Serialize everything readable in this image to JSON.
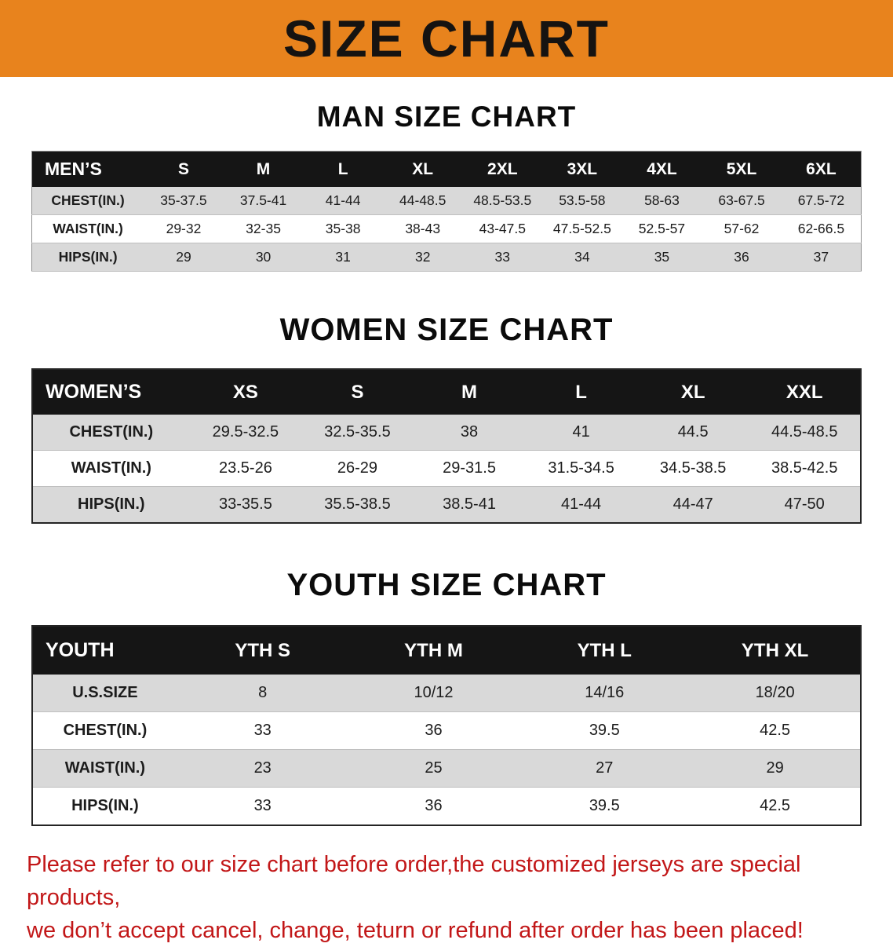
{
  "banner_title": "SIZE CHART",
  "men": {
    "heading": "MAN SIZE CHART",
    "table": {
      "header": [
        "MEN’S",
        "S",
        "M",
        "L",
        "XL",
        "2XL",
        "3XL",
        "4XL",
        "5XL",
        "6XL"
      ],
      "rows": [
        [
          "CHEST(IN.)",
          "35-37.5",
          "37.5-41",
          "41-44",
          "44-48.5",
          "48.5-53.5",
          "53.5-58",
          "58-63",
          "63-67.5",
          "67.5-72"
        ],
        [
          "WAIST(IN.)",
          "29-32",
          "32-35",
          "35-38",
          "38-43",
          "43-47.5",
          "47.5-52.5",
          "52.5-57",
          "57-62",
          "62-66.5"
        ],
        [
          "HIPS(IN.)",
          "29",
          "30",
          "31",
          "32",
          "33",
          "34",
          "35",
          "36",
          "37"
        ]
      ]
    }
  },
  "women": {
    "heading": "WOMEN SIZE CHART",
    "table": {
      "header": [
        "WOMEN’S",
        "XS",
        "S",
        "M",
        "L",
        "XL",
        "XXL"
      ],
      "rows": [
        [
          "CHEST(IN.)",
          "29.5-32.5",
          "32.5-35.5",
          "38",
          "41",
          "44.5",
          "44.5-48.5"
        ],
        [
          "WAIST(IN.)",
          "23.5-26",
          "26-29",
          "29-31.5",
          "31.5-34.5",
          "34.5-38.5",
          "38.5-42.5"
        ],
        [
          "HIPS(IN.)",
          "33-35.5",
          "35.5-38.5",
          "38.5-41",
          "41-44",
          "44-47",
          "47-50"
        ]
      ]
    }
  },
  "youth": {
    "heading": "YOUTH SIZE CHART",
    "table": {
      "header": [
        "YOUTH",
        "YTH S",
        "YTH M",
        "YTH L",
        "YTH XL"
      ],
      "rows": [
        [
          "U.S.SIZE",
          "8",
          "10/12",
          "14/16",
          "18/20"
        ],
        [
          "CHEST(IN.)",
          "33",
          "36",
          "39.5",
          "42.5"
        ],
        [
          "WAIST(IN.)",
          "23",
          "25",
          "27",
          "29"
        ],
        [
          "HIPS(IN.)",
          "33",
          "36",
          "39.5",
          "42.5"
        ]
      ]
    }
  },
  "disclaimer": {
    "line1": "Please refer to our size chart before order,the customized jerseys are special products,",
    "line2": "we don’t accept cancel, change, teturn or refund after order has been placed!"
  },
  "colors": {
    "banner_bg": "#E8831D",
    "table_header_bg": "#151515",
    "table_header_text": "#FFFFFF",
    "row_shaded": "#D9D9D9",
    "row_plain": "#FFFFFF",
    "disclaimer_text": "#C21718",
    "heading_text": "#0B0B0B"
  }
}
